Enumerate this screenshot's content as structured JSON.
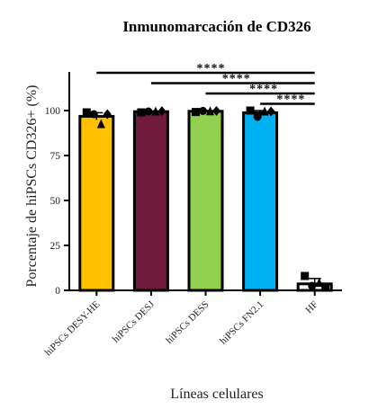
{
  "chart_data": {
    "type": "bar",
    "title": "Inmunomarcación de CD326",
    "xlabel": "Líneas celulares",
    "ylabel": "Porcentaje de hiPSCs CD326+ (%)",
    "ylim": [
      0,
      100
    ],
    "yticks": [
      "0",
      "25",
      "50",
      "75",
      "100"
    ],
    "grid": false,
    "categories": [
      "hiPSCs DESY-HE",
      "hiPSCs DESJ",
      "hiPSCs DESS",
      "hiPSCs FN2.1",
      "HF"
    ],
    "values": [
      96.8,
      99.4,
      99.6,
      98.8,
      3.6
    ],
    "errors": [
      2.0,
      0.3,
      0.3,
      1.2,
      3.0
    ],
    "colors": [
      "#FFC000",
      "#701A3C",
      "#92D050",
      "#00B0F0",
      "#FFFFFF"
    ],
    "points": [
      [
        {
          "shape": "square",
          "y": 99.0
        },
        {
          "shape": "circle",
          "y": 98.0
        },
        {
          "shape": "triangle",
          "y": 92.5
        },
        {
          "shape": "diamond",
          "y": 98.0
        }
      ],
      [
        {
          "shape": "square",
          "y": 99.0
        },
        {
          "shape": "circle",
          "y": 99.5
        },
        {
          "shape": "triangle",
          "y": 99.5
        },
        {
          "shape": "diamond",
          "y": 99.7
        }
      ],
      [
        {
          "shape": "square",
          "y": 99.2
        },
        {
          "shape": "circle",
          "y": 99.8
        },
        {
          "shape": "triangle",
          "y": 99.6
        },
        {
          "shape": "diamond",
          "y": 99.8
        }
      ],
      [
        {
          "shape": "square",
          "y": 100.0
        },
        {
          "shape": "circle",
          "y": 96.5
        },
        {
          "shape": "triangle",
          "y": 99.5
        },
        {
          "shape": "diamond",
          "y": 99.5
        }
      ],
      [
        {
          "shape": "square",
          "y": 8.0
        },
        {
          "shape": "circle",
          "y": 2.5
        },
        {
          "shape": "triangle",
          "y": 4.2
        },
        {
          "shape": "square",
          "y": 1.5
        }
      ]
    ],
    "significance": [
      {
        "from": 0,
        "to": 4,
        "label": "****"
      },
      {
        "from": 1,
        "to": 4,
        "label": "****"
      },
      {
        "from": 2,
        "to": 4,
        "label": "****"
      },
      {
        "from": 3,
        "to": 4,
        "label": "****"
      }
    ]
  }
}
